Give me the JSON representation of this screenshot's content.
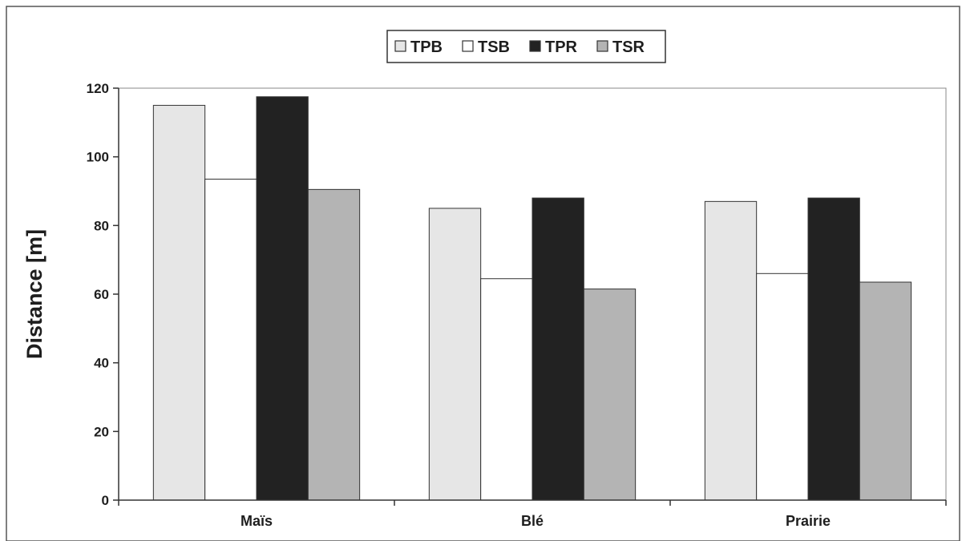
{
  "chart_data": {
    "type": "bar",
    "title": "",
    "xlabel": "",
    "ylabel": "Distance  [m]",
    "ylim": [
      0,
      120
    ],
    "yticks": [
      0,
      20,
      40,
      60,
      80,
      100,
      120
    ],
    "categories": [
      "Maïs",
      "Blé",
      "Prairie"
    ],
    "grid": false,
    "legend_position": "top-center",
    "series": [
      {
        "name": "TPB",
        "color": "#e6e6e6",
        "values": [
          115,
          85,
          87
        ]
      },
      {
        "name": "TSB",
        "color": "#ffffff",
        "values": [
          93.5,
          64.5,
          66
        ]
      },
      {
        "name": "TPR",
        "color": "#222222",
        "values": [
          117.5,
          88,
          88
        ]
      },
      {
        "name": "TSR",
        "color": "#b4b4b4",
        "values": [
          90.5,
          61.5,
          63.5
        ]
      }
    ]
  }
}
